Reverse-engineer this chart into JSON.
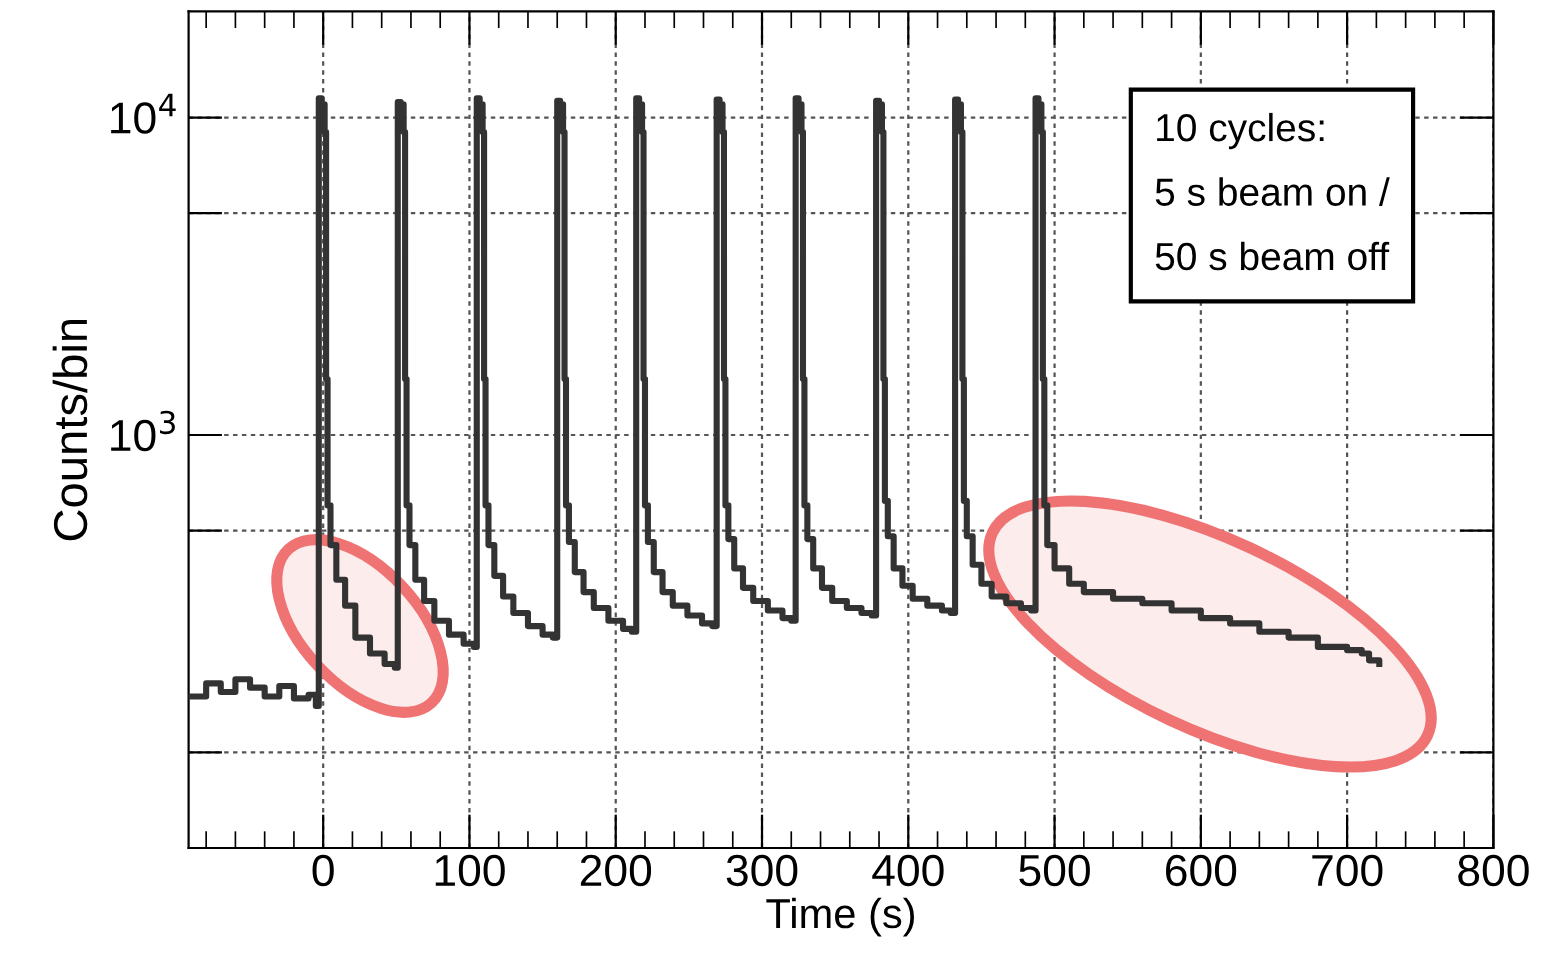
{
  "chart_data": {
    "type": "step",
    "xlabel": "Time (s)",
    "ylabel": "Counts/bin",
    "log": "y",
    "grid": true,
    "legend": false,
    "xlim": [
      -92,
      800
    ],
    "xticks": [
      0,
      100,
      200,
      300,
      400,
      500,
      600,
      700,
      800
    ],
    "ylim": [
      50,
      21600
    ],
    "yticks": [
      {
        "value": 100,
        "label": null
      },
      {
        "value": 500,
        "label": null
      },
      {
        "value": 1000,
        "label": "10$^{3}$"
      },
      {
        "value": 5000,
        "label": null
      },
      {
        "value": 10000,
        "label": "10$^{4}$"
      }
    ],
    "annotations": [
      "10 cycles:\n5 s beam on /\n50 s beam off"
    ],
    "series": [
      {
        "color": "#333333",
        "x": [
          -92,
          -80,
          -70,
          -60,
          -50,
          -40,
          -30,
          -20,
          -10,
          -5,
          -3,
          -1,
          1,
          2,
          3,
          5,
          9,
          15,
          22,
          32,
          42,
          49,
          51,
          53,
          55,
          56,
          57,
          59,
          63,
          69,
          76,
          86,
          96,
          103,
          105,
          107,
          109,
          110,
          111,
          113,
          117,
          123,
          130,
          140,
          150,
          157,
          160,
          162,
          164,
          165,
          166,
          168,
          172,
          178,
          185,
          195,
          205,
          211,
          214,
          216,
          218,
          219,
          220,
          222,
          226,
          232,
          239,
          249,
          259,
          266,
          269,
          271,
          273,
          274,
          275,
          277,
          281,
          287,
          294,
          304,
          314,
          320,
          323,
          325,
          327,
          328,
          329,
          331,
          335,
          341,
          348,
          358,
          368,
          375,
          378,
          380,
          382,
          383,
          384,
          386,
          390,
          396,
          403,
          413,
          423,
          429,
          432,
          434,
          436,
          437,
          438,
          440,
          444,
          450,
          457,
          467,
          477,
          484,
          487,
          489,
          491,
          492,
          493,
          495,
          500,
          510,
          520,
          540,
          560,
          580,
          600,
          620,
          640,
          660,
          680,
          700,
          710,
          715,
          722
        ],
        "values": [
          150,
          165,
          155,
          170,
          160,
          150,
          162,
          148,
          152,
          140,
          11500,
          11000,
          9000,
          1500,
          600,
          450,
          350,
          290,
          230,
          205,
          190,
          185,
          11200,
          11000,
          9000,
          1500,
          600,
          450,
          350,
          300,
          260,
          235,
          220,
          215,
          11500,
          11000,
          9000,
          1500,
          600,
          450,
          360,
          310,
          275,
          250,
          235,
          230,
          11300,
          11000,
          9000,
          1500,
          600,
          460,
          370,
          320,
          285,
          260,
          245,
          240,
          11500,
          11000,
          9000,
          1500,
          600,
          460,
          370,
          320,
          290,
          270,
          255,
          250,
          11400,
          11000,
          9000,
          1500,
          600,
          470,
          380,
          330,
          300,
          280,
          265,
          260,
          11500,
          11000,
          9000,
          1500,
          600,
          470,
          380,
          330,
          300,
          285,
          275,
          270,
          11300,
          11000,
          9000,
          1500,
          620,
          480,
          380,
          335,
          305,
          290,
          280,
          275,
          11400,
          11000,
          9000,
          1500,
          620,
          480,
          390,
          340,
          310,
          295,
          285,
          280,
          11500,
          11000,
          9000,
          1500,
          600,
          450,
          380,
          340,
          320,
          305,
          295,
          280,
          265,
          255,
          240,
          230,
          215,
          210,
          205,
          195,
          190
        ]
      }
    ]
  }
}
